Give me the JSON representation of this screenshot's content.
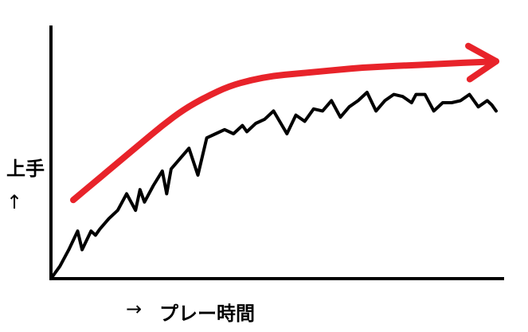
{
  "chart_data": {
    "type": "line",
    "title": "",
    "xlabel": "プレー時間",
    "ylabel": "上手",
    "x_arrow": "→",
    "y_arrow": "↑",
    "xlim": [
      0,
      100
    ],
    "ylim": [
      0,
      100
    ],
    "grid": false,
    "series": [
      {
        "color": "#000000",
        "x": [
          0,
          2,
          4,
          6,
          7,
          9,
          10,
          11,
          13,
          15,
          17,
          19,
          20,
          21,
          23,
          25,
          26,
          27,
          29,
          31,
          33,
          35,
          37,
          39,
          41,
          43,
          44,
          46,
          48,
          50,
          53,
          55,
          57,
          59,
          61,
          63,
          65,
          67,
          69,
          71,
          73,
          75,
          77,
          79,
          81,
          82,
          84,
          86,
          88,
          90,
          92,
          94,
          96,
          98,
          99,
          100
        ],
        "values": [
          0,
          6,
          14,
          23,
          14,
          23,
          21,
          24,
          29,
          33,
          41,
          33,
          43,
          37,
          45,
          52,
          41,
          53,
          58,
          63,
          50,
          68,
          70,
          72,
          70,
          74,
          71,
          75,
          77,
          81,
          70,
          79,
          76,
          82,
          81,
          86,
          78,
          83,
          86,
          90,
          81,
          86,
          89,
          88,
          85,
          89,
          89,
          81,
          85,
          85,
          86,
          89,
          83,
          86,
          84,
          81
        ]
      },
      {
        "color": "#e8232a",
        "arrowhead": true,
        "x": [
          5,
          10,
          15,
          20,
          25,
          30,
          35,
          40,
          45,
          50,
          55,
          60,
          65,
          70,
          75,
          80,
          85,
          90,
          95,
          100
        ],
        "values": [
          38,
          47,
          56,
          65,
          74,
          82,
          88,
          93,
          96,
          98,
          99,
          100,
          101,
          102,
          102.5,
          103,
          103.5,
          104,
          104.5,
          105
        ]
      }
    ]
  }
}
